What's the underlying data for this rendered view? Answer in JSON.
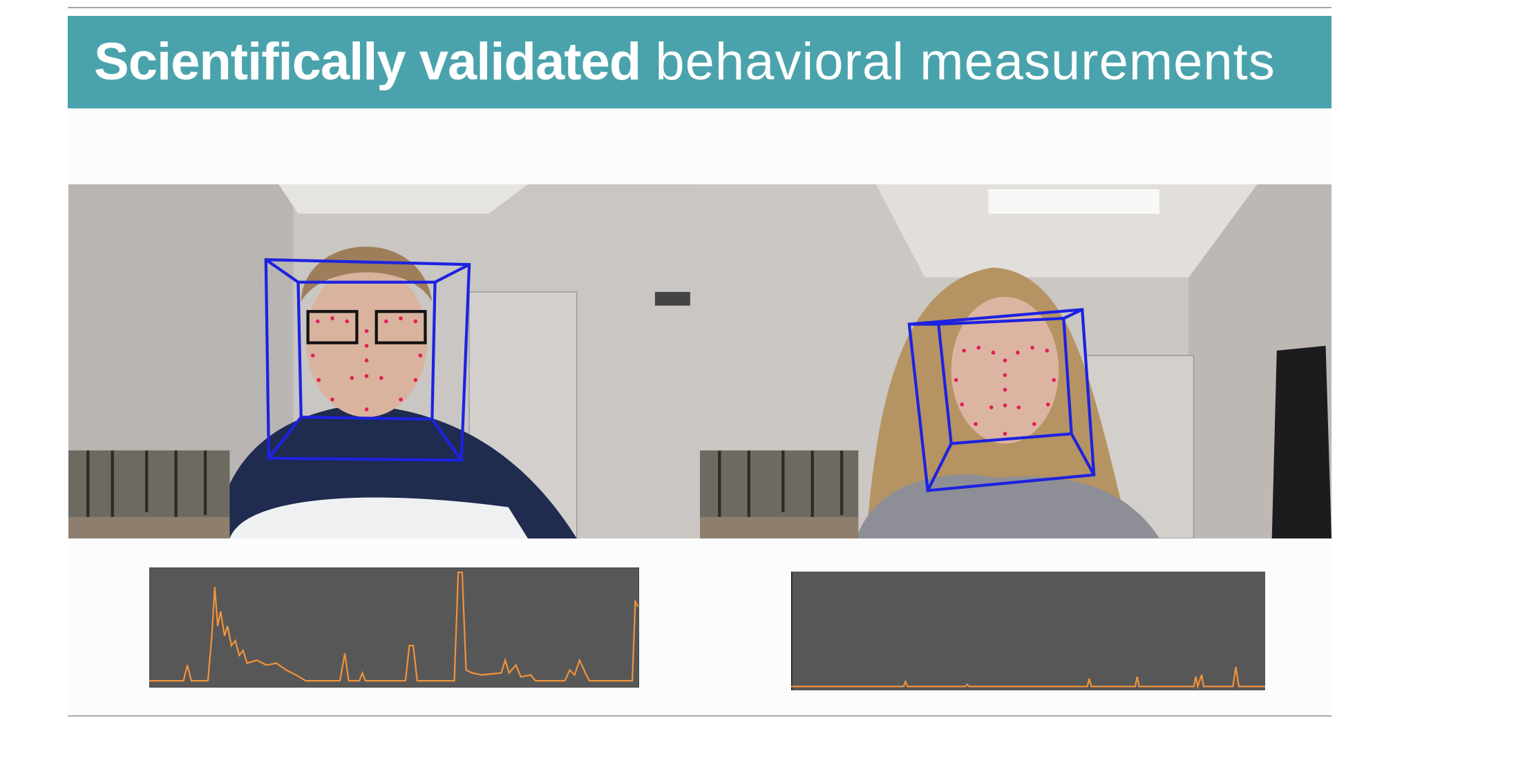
{
  "header": {
    "title_bold": "Scientifically validated",
    "title_light": "behavioral measurements"
  }
}
